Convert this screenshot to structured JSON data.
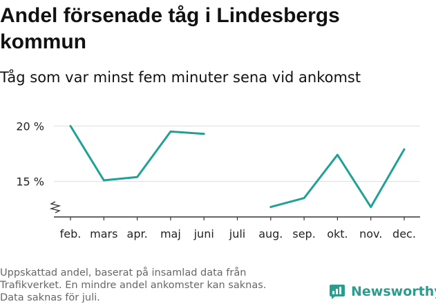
{
  "header": {
    "title": "Andel försenade tåg i Lindesbergs kommun",
    "subtitle": "Tåg som var minst fem minuter sena vid ankomst"
  },
  "footnote": {
    "lines": [
      "Uppskattad andel, baserat på insamlad data från",
      "Trafikverket. En mindre andel ankomster kan saknas.",
      "Data saknas för juli."
    ]
  },
  "brand": {
    "name": "Newsworthy",
    "icon": "newsworthy-logo-icon",
    "color": "#2a9d8f"
  },
  "chart_data": {
    "type": "line",
    "categories": [
      "feb.",
      "mars",
      "apr.",
      "maj",
      "juni",
      "juli",
      "aug.",
      "sep.",
      "okt.",
      "nov.",
      "dec."
    ],
    "series": [
      {
        "values": [
          20.0,
          15.1,
          15.4,
          19.5,
          19.3,
          null,
          12.7,
          13.5,
          17.4,
          12.7,
          17.9
        ]
      }
    ],
    "yticks": [
      15,
      20
    ],
    "ytick_labels": [
      "15 %",
      "20 %"
    ],
    "ylim": [
      11.8,
      20.4
    ],
    "y_axis_break": true,
    "grid": true,
    "line_color": "#1fa196",
    "grid_color": "#dddddd",
    "axis_color": "#333333"
  }
}
